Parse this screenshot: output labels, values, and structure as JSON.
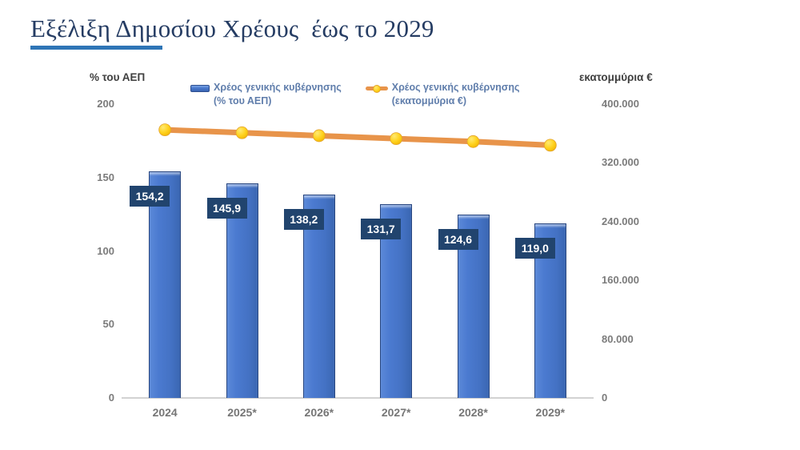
{
  "title": {
    "text": "Εξέλιξη Δημοσίου Χρέους  έως το 2029",
    "color": "#253c63",
    "underline_color": "#2e75b6"
  },
  "chart_data": {
    "type": "bar",
    "subtype": "combo-bar-line",
    "grid": false,
    "legend_position": "top",
    "categories": [
      "2024",
      "2025*",
      "2026*",
      "2027*",
      "2028*",
      "2029*"
    ],
    "series": [
      {
        "name": "Χρέος γενικής κυβέρνησης (% του ΑΕΠ)",
        "type": "bar",
        "axis": "left",
        "color": "#4472c4",
        "values": [
          154.2,
          145.9,
          138.2,
          131.7,
          124.6,
          119.0
        ],
        "data_labels": [
          "154,2",
          "145,9",
          "138,2",
          "131,7",
          "124,6",
          "119,0"
        ],
        "label_box_color": "#21446e",
        "label_text_color": "#ffffff"
      },
      {
        "name": "Χρέος γενικής κυβέρνησης (εκατομμύρια €)",
        "type": "line",
        "axis": "right",
        "color": "#e8944a",
        "marker_color": "#ffd21e",
        "values": [
          365000,
          361000,
          357000,
          353000,
          349000,
          344000
        ],
        "values_note": "estimated from right axis; no data labels shown"
      }
    ],
    "left_axis": {
      "header": "% του ΑΕΠ",
      "ylim": [
        0,
        200
      ],
      "tick_labels": [
        "200",
        "150",
        "100",
        "50",
        "0"
      ],
      "tick_values": [
        200,
        150,
        100,
        50,
        0
      ]
    },
    "right_axis": {
      "header": "εκατομμύρια €",
      "ylim": [
        0,
        400000
      ],
      "tick_labels": [
        "400.000",
        "320.000",
        "240.000",
        "160.000",
        "80.000",
        "0"
      ],
      "tick_values": [
        400000,
        320000,
        240000,
        160000,
        80000,
        0
      ]
    },
    "legend": [
      {
        "line1": "Χρέος γενικής κυβέρνησης",
        "line2": "(% του ΑΕΠ)",
        "icon": "bar"
      },
      {
        "line1": "Χρέος γενικής κυβέρνησης",
        "line2": "(εκατομμύρια €)",
        "icon": "line-marker"
      }
    ]
  }
}
